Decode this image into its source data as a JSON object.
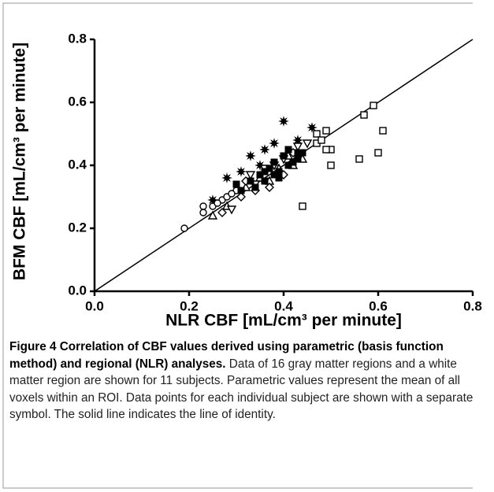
{
  "chart_data": {
    "type": "scatter",
    "xlabel": "NLR CBF [mL/cm³ per minute]",
    "ylabel": "BFM CBF [mL/cm³ per minute]",
    "xlim": [
      0,
      0.8
    ],
    "ylim": [
      0,
      0.8
    ],
    "xticks": [
      {
        "value": 0,
        "label": "0.0"
      },
      0.2,
      0.4,
      0.6,
      0.8
    ],
    "yticks": [
      {
        "value": 0,
        "label": "0.0"
      },
      0.2,
      0.4,
      0.6,
      0.8
    ],
    "identity_line": {
      "x": [
        0,
        0.8
      ],
      "y": [
        0,
        0.8
      ]
    },
    "series": [
      {
        "marker": "square-open",
        "color": "#000000",
        "x": [
          0.49,
          0.47,
          0.59,
          0.57,
          0.61,
          0.6,
          0.56,
          0.5,
          0.49,
          0.5,
          0.44,
          0.47,
          0.48
        ],
        "values": [
          0.51,
          0.5,
          0.59,
          0.56,
          0.51,
          0.44,
          0.42,
          0.45,
          0.45,
          0.4,
          0.27,
          0.47,
          0.48
        ]
      },
      {
        "marker": "star",
        "color": "#000000",
        "x": [
          0.4,
          0.33,
          0.28,
          0.36,
          0.46,
          0.43,
          0.38,
          0.25,
          0.31,
          0.35
        ],
        "values": [
          0.54,
          0.43,
          0.36,
          0.45,
          0.52,
          0.48,
          0.47,
          0.29,
          0.38,
          0.4
        ]
      },
      {
        "marker": "circle-open",
        "color": "#000000",
        "x": [
          0.19,
          0.23,
          0.23,
          0.25,
          0.27,
          0.28,
          0.3,
          0.26,
          0.29
        ],
        "values": [
          0.2,
          0.27,
          0.25,
          0.27,
          0.29,
          0.3,
          0.32,
          0.28,
          0.31
        ]
      },
      {
        "marker": "triangle-open",
        "color": "#000000",
        "x": [
          0.25,
          0.28,
          0.32,
          0.35,
          0.39,
          0.42,
          0.44,
          0.41,
          0.37
        ],
        "values": [
          0.24,
          0.27,
          0.33,
          0.36,
          0.39,
          0.4,
          0.42,
          0.43,
          0.35
        ]
      },
      {
        "marker": "triangle-down-open",
        "color": "#000000",
        "x": [
          0.29,
          0.33,
          0.36,
          0.4,
          0.43,
          0.45,
          0.34,
          0.38
        ],
        "values": [
          0.26,
          0.37,
          0.39,
          0.42,
          0.46,
          0.47,
          0.34,
          0.4
        ]
      },
      {
        "marker": "diamond-open",
        "color": "#000000",
        "x": [
          0.27,
          0.31,
          0.34,
          0.37,
          0.4,
          0.42,
          0.32
        ],
        "values": [
          0.25,
          0.3,
          0.32,
          0.33,
          0.37,
          0.44,
          0.35
        ]
      },
      {
        "marker": "square",
        "color": "#000000",
        "x": [
          0.33,
          0.35,
          0.36,
          0.37,
          0.38,
          0.39,
          0.4,
          0.41,
          0.42,
          0.43,
          0.34,
          0.36,
          0.39,
          0.41,
          0.43,
          0.44,
          0.38,
          0.3,
          0.31
        ],
        "values": [
          0.35,
          0.37,
          0.38,
          0.39,
          0.41,
          0.38,
          0.43,
          0.4,
          0.41,
          0.42,
          0.33,
          0.35,
          0.36,
          0.45,
          0.44,
          0.44,
          0.37,
          0.34,
          0.32
        ]
      }
    ],
    "caption_title": "Figure 4 Correlation of CBF values derived using parametric (basis function method) and regional (NLR) analyses.",
    "caption": "Data of 16 gray matter regions and a white matter region are shown for 11 subjects. Parametric values represent the mean of all voxels within an ROI. Data points for each individual subject are shown with a separate symbol. The solid line indicates the line of identity."
  }
}
